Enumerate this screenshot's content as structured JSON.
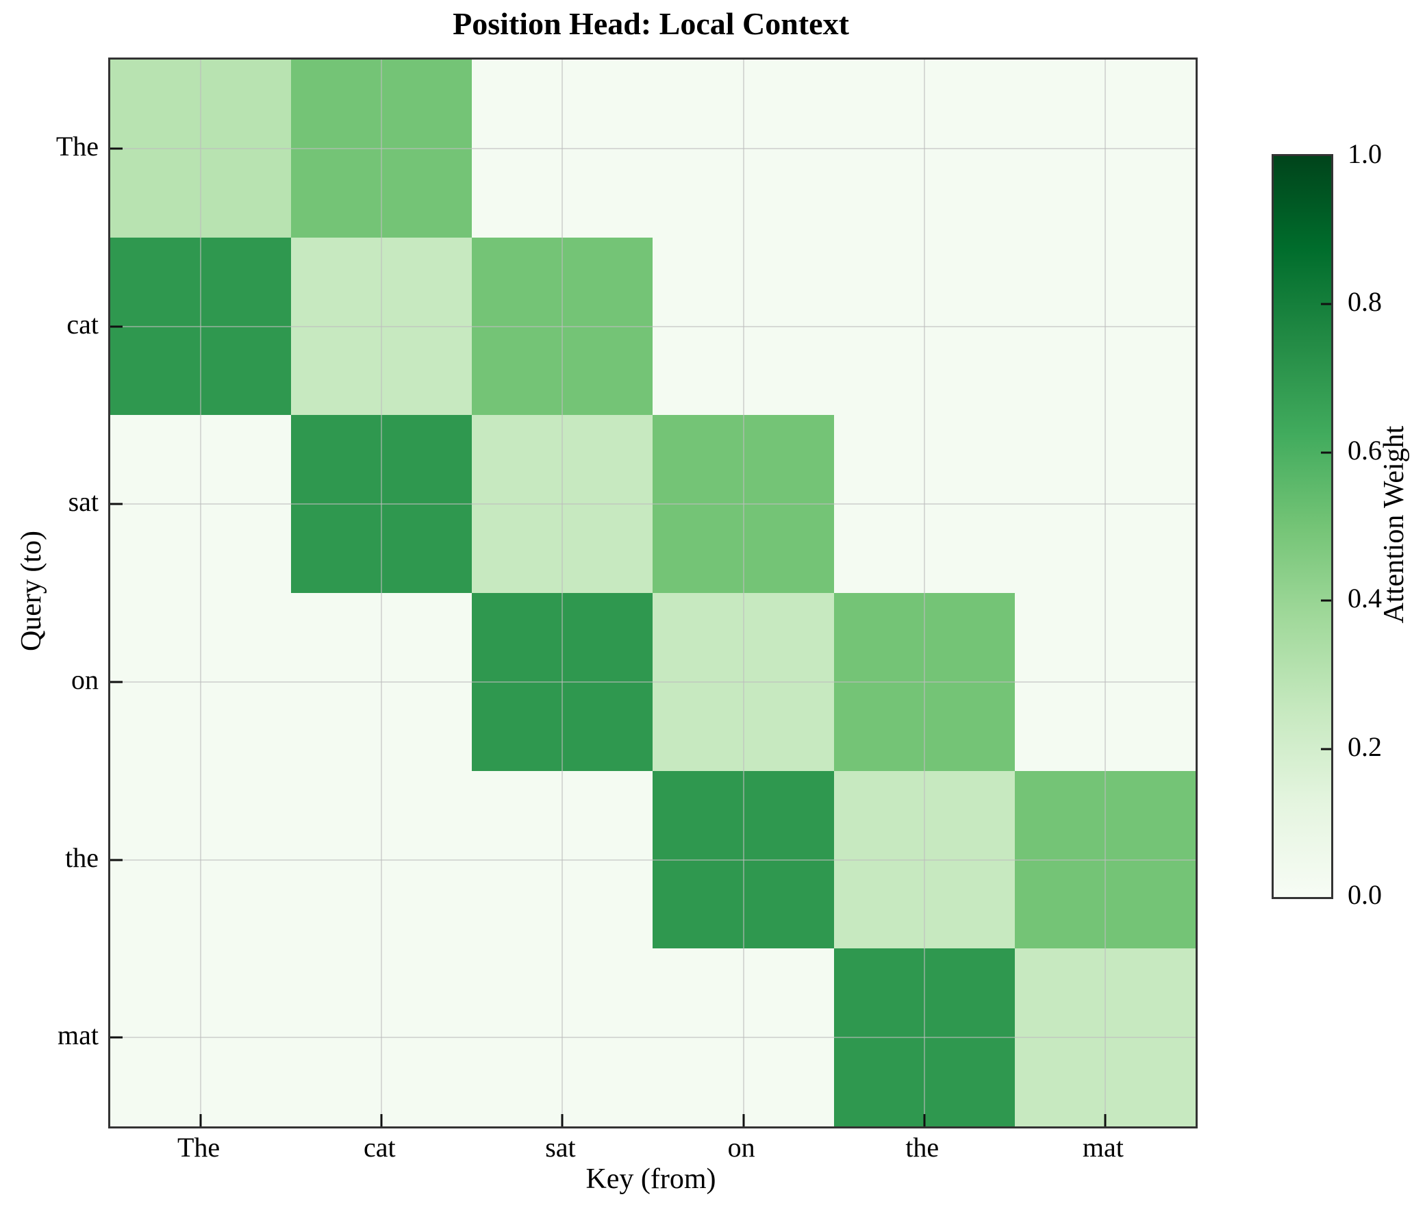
{
  "chart_data": {
    "type": "heatmap",
    "title": "Position Head: Local Context",
    "xlabel": "Key (from)",
    "ylabel": "Query (to)",
    "x_tokens": [
      "The",
      "cat",
      "sat",
      "on",
      "the",
      "mat"
    ],
    "y_tokens": [
      "The",
      "cat",
      "sat",
      "on",
      "the",
      "mat"
    ],
    "matrix": [
      [
        0.3,
        0.5,
        0.02,
        0.02,
        0.02,
        0.02
      ],
      [
        0.7,
        0.25,
        0.5,
        0.02,
        0.02,
        0.02
      ],
      [
        0.02,
        0.7,
        0.25,
        0.5,
        0.02,
        0.02
      ],
      [
        0.02,
        0.02,
        0.7,
        0.25,
        0.5,
        0.02
      ],
      [
        0.02,
        0.02,
        0.02,
        0.7,
        0.25,
        0.5
      ],
      [
        0.02,
        0.02,
        0.02,
        0.02,
        0.7,
        0.25
      ]
    ],
    "vmin": 0.0,
    "vmax": 1.0,
    "grid": true,
    "colorbar": {
      "label": "Attention Weight",
      "ticks": [
        {
          "label": "1.0",
          "value": 1.0
        },
        {
          "label": "0.8",
          "value": 0.8
        },
        {
          "label": "0.6",
          "value": 0.6
        },
        {
          "label": "0.4",
          "value": 0.4
        },
        {
          "label": "0.2",
          "value": 0.2
        },
        {
          "label": "0.0",
          "value": 0.0
        }
      ]
    },
    "colormap": {
      "name": "Greens",
      "stops": [
        [
          0.0,
          "#f7fcf5"
        ],
        [
          0.125,
          "#e5f5e0"
        ],
        [
          0.25,
          "#c7e9c0"
        ],
        [
          0.375,
          "#a1d99b"
        ],
        [
          0.5,
          "#74c476"
        ],
        [
          0.625,
          "#41ab5d"
        ],
        [
          0.75,
          "#238b45"
        ],
        [
          0.875,
          "#006d2c"
        ],
        [
          1.0,
          "#00441b"
        ]
      ]
    },
    "colors": {
      "spine": "#333333",
      "tick": "#111111",
      "gridline": "rgba(190,190,190,0.55)",
      "background": "#ffffff"
    }
  }
}
